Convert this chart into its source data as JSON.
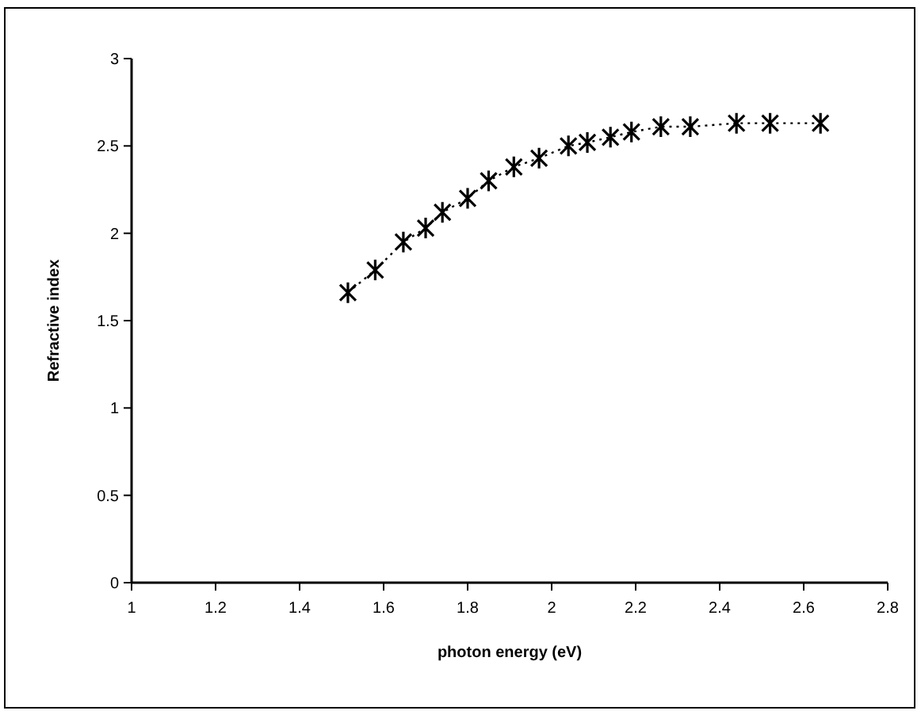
{
  "chart_data": {
    "type": "line",
    "xlabel": "photon energy (eV)",
    "ylabel": "Refractive index",
    "x": [
      1.515,
      1.58,
      1.647,
      1.7,
      1.74,
      1.8,
      1.85,
      1.91,
      1.97,
      2.04,
      2.085,
      2.14,
      2.19,
      2.26,
      2.33,
      2.44,
      2.52,
      2.64
    ],
    "series": [
      {
        "color": "#000000",
        "values": [
          1.66,
          1.79,
          1.95,
          2.03,
          2.12,
          2.2,
          2.3,
          2.38,
          2.43,
          2.5,
          2.52,
          2.55,
          2.58,
          2.61,
          2.61,
          2.63,
          2.63,
          2.63
        ]
      }
    ],
    "xlim": [
      1,
      2.8
    ],
    "xticks": [
      1,
      1.2,
      1.4,
      1.6,
      1.8,
      2,
      2.2,
      2.4,
      2.6,
      2.8
    ],
    "ylim": [
      0,
      3
    ],
    "yticks": [
      0,
      0.5,
      1,
      1.5,
      2,
      2.5,
      3
    ],
    "marker": "cross",
    "line_style": "dotted",
    "grid": false
  }
}
